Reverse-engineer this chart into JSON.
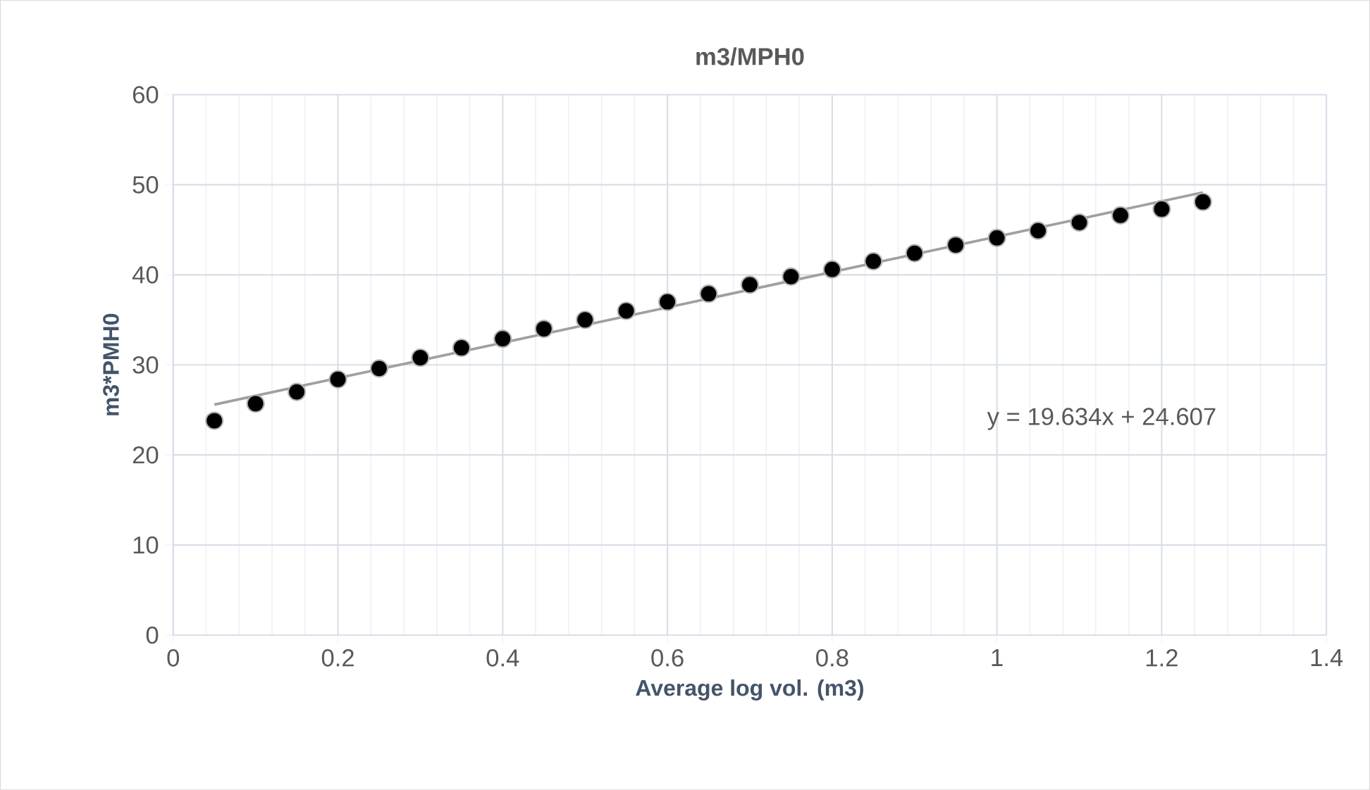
{
  "chart_data": {
    "type": "scatter",
    "title": "m3/MPH0",
    "xlabel": "Average log vol. (m3)",
    "ylabel": "m3*PMH0",
    "xlim": [
      0,
      1.4
    ],
    "xticks": [
      0,
      0.2,
      0.4,
      0.6,
      0.8,
      1,
      1.2,
      1.4
    ],
    "ylim": [
      0,
      60
    ],
    "yticks": [
      0,
      10,
      20,
      30,
      40,
      50,
      60
    ],
    "grid": true,
    "marker": "circle",
    "series": [
      {
        "color": "#000000",
        "x": [
          0.05,
          0.1,
          0.15,
          0.2,
          0.25,
          0.3,
          0.35,
          0.4,
          0.45,
          0.5,
          0.55,
          0.6,
          0.65,
          0.7,
          0.75,
          0.8,
          0.85,
          0.9,
          0.95,
          1.0,
          1.05,
          1.1,
          1.15,
          1.2,
          1.25
        ],
        "values": [
          23.8,
          25.7,
          27.0,
          28.4,
          29.6,
          30.8,
          31.9,
          32.9,
          34.0,
          35.0,
          36.0,
          37.0,
          37.9,
          38.9,
          39.8,
          40.6,
          41.5,
          42.4,
          43.3,
          44.1,
          44.9,
          45.8,
          46.6,
          47.3,
          48.1
        ]
      },
      {
        "type": "line",
        "color": "#a0a0a0",
        "marker": "none",
        "x": [
          0.05,
          1.25
        ],
        "values": [
          25.589,
          49.15
        ]
      }
    ],
    "annotations": [
      "y = 19.634x + 24.607"
    ]
  }
}
